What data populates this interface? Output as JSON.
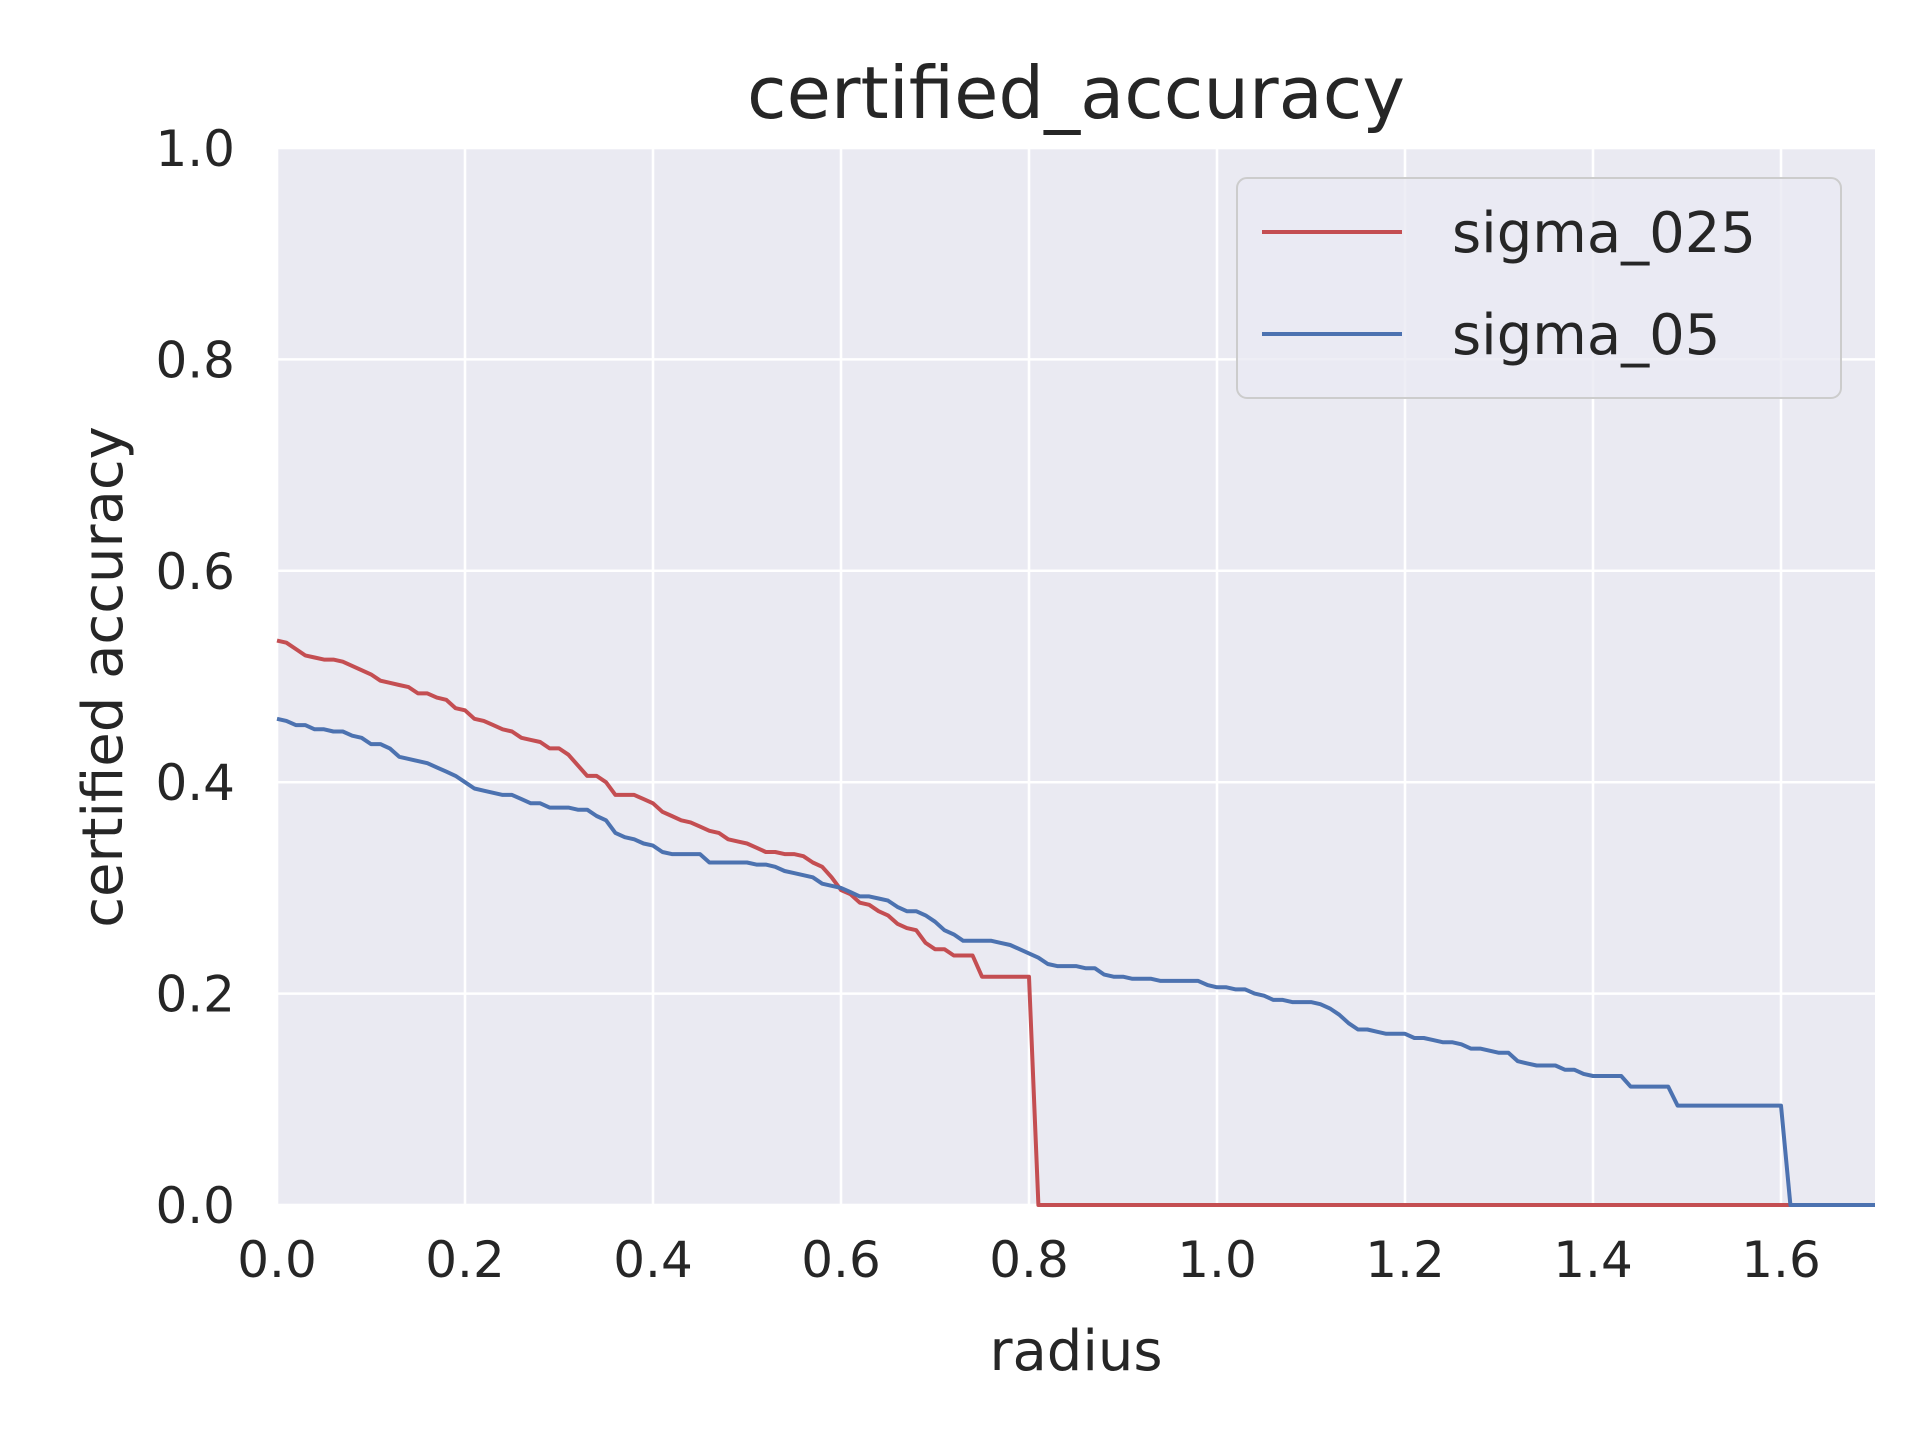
{
  "chart_data": {
    "type": "line",
    "title": "certified_accuracy",
    "xlabel": "radius",
    "ylabel": "certified accuracy",
    "xlim": [
      0.0,
      1.7
    ],
    "ylim": [
      0.0,
      1.0
    ],
    "xticks": [
      "0.0",
      "0.2",
      "0.4",
      "0.6",
      "0.8",
      "1.0",
      "1.2",
      "1.4",
      "1.6"
    ],
    "yticks": [
      "0.0",
      "0.2",
      "0.4",
      "0.6",
      "0.8",
      "1.0"
    ],
    "grid": true,
    "legend_position": "top-right",
    "background_color": "#eaeaf2",
    "series": [
      {
        "name": "sigma_025",
        "color": "#c44e52",
        "points": [
          [
            0.0,
            0.534
          ],
          [
            0.01,
            0.532
          ],
          [
            0.02,
            0.526
          ],
          [
            0.03,
            0.52
          ],
          [
            0.04,
            0.518
          ],
          [
            0.05,
            0.516
          ],
          [
            0.06,
            0.516
          ],
          [
            0.07,
            0.514
          ],
          [
            0.08,
            0.51
          ],
          [
            0.09,
            0.506
          ],
          [
            0.1,
            0.502
          ],
          [
            0.11,
            0.496
          ],
          [
            0.12,
            0.494
          ],
          [
            0.13,
            0.492
          ],
          [
            0.14,
            0.49
          ],
          [
            0.15,
            0.484
          ],
          [
            0.16,
            0.484
          ],
          [
            0.17,
            0.48
          ],
          [
            0.18,
            0.478
          ],
          [
            0.19,
            0.47
          ],
          [
            0.2,
            0.468
          ],
          [
            0.21,
            0.46
          ],
          [
            0.22,
            0.458
          ],
          [
            0.23,
            0.454
          ],
          [
            0.24,
            0.45
          ],
          [
            0.25,
            0.448
          ],
          [
            0.26,
            0.442
          ],
          [
            0.27,
            0.44
          ],
          [
            0.28,
            0.438
          ],
          [
            0.29,
            0.432
          ],
          [
            0.3,
            0.432
          ],
          [
            0.31,
            0.426
          ],
          [
            0.32,
            0.416
          ],
          [
            0.33,
            0.406
          ],
          [
            0.34,
            0.406
          ],
          [
            0.35,
            0.4
          ],
          [
            0.36,
            0.388
          ],
          [
            0.37,
            0.388
          ],
          [
            0.38,
            0.388
          ],
          [
            0.39,
            0.384
          ],
          [
            0.4,
            0.38
          ],
          [
            0.41,
            0.372
          ],
          [
            0.42,
            0.368
          ],
          [
            0.43,
            0.364
          ],
          [
            0.44,
            0.362
          ],
          [
            0.45,
            0.358
          ],
          [
            0.46,
            0.354
          ],
          [
            0.47,
            0.352
          ],
          [
            0.48,
            0.346
          ],
          [
            0.49,
            0.344
          ],
          [
            0.5,
            0.342
          ],
          [
            0.51,
            0.338
          ],
          [
            0.52,
            0.334
          ],
          [
            0.53,
            0.334
          ],
          [
            0.54,
            0.332
          ],
          [
            0.55,
            0.332
          ],
          [
            0.56,
            0.33
          ],
          [
            0.57,
            0.324
          ],
          [
            0.58,
            0.32
          ],
          [
            0.59,
            0.31
          ],
          [
            0.6,
            0.298
          ],
          [
            0.61,
            0.294
          ],
          [
            0.62,
            0.286
          ],
          [
            0.63,
            0.284
          ],
          [
            0.64,
            0.278
          ],
          [
            0.65,
            0.274
          ],
          [
            0.66,
            0.266
          ],
          [
            0.67,
            0.262
          ],
          [
            0.68,
            0.26
          ],
          [
            0.69,
            0.248
          ],
          [
            0.7,
            0.242
          ],
          [
            0.71,
            0.242
          ],
          [
            0.72,
            0.236
          ],
          [
            0.73,
            0.236
          ],
          [
            0.74,
            0.236
          ],
          [
            0.75,
            0.216
          ],
          [
            0.76,
            0.216
          ],
          [
            0.77,
            0.216
          ],
          [
            0.78,
            0.216
          ],
          [
            0.79,
            0.216
          ],
          [
            0.8,
            0.216
          ],
          [
            0.81,
            0.0
          ],
          [
            1.7,
            0.0
          ]
        ]
      },
      {
        "name": "sigma_05",
        "color": "#4c72b0",
        "points": [
          [
            0.0,
            0.46
          ],
          [
            0.01,
            0.458
          ],
          [
            0.02,
            0.454
          ],
          [
            0.03,
            0.454
          ],
          [
            0.04,
            0.45
          ],
          [
            0.05,
            0.45
          ],
          [
            0.06,
            0.448
          ],
          [
            0.07,
            0.448
          ],
          [
            0.08,
            0.444
          ],
          [
            0.09,
            0.442
          ],
          [
            0.1,
            0.436
          ],
          [
            0.11,
            0.436
          ],
          [
            0.12,
            0.432
          ],
          [
            0.13,
            0.424
          ],
          [
            0.14,
            0.422
          ],
          [
            0.15,
            0.42
          ],
          [
            0.16,
            0.418
          ],
          [
            0.17,
            0.414
          ],
          [
            0.18,
            0.41
          ],
          [
            0.19,
            0.406
          ],
          [
            0.2,
            0.4
          ],
          [
            0.21,
            0.394
          ],
          [
            0.22,
            0.392
          ],
          [
            0.23,
            0.39
          ],
          [
            0.24,
            0.388
          ],
          [
            0.25,
            0.388
          ],
          [
            0.26,
            0.384
          ],
          [
            0.27,
            0.38
          ],
          [
            0.28,
            0.38
          ],
          [
            0.29,
            0.376
          ],
          [
            0.3,
            0.376
          ],
          [
            0.31,
            0.376
          ],
          [
            0.32,
            0.374
          ],
          [
            0.33,
            0.374
          ],
          [
            0.34,
            0.368
          ],
          [
            0.35,
            0.364
          ],
          [
            0.36,
            0.352
          ],
          [
            0.37,
            0.348
          ],
          [
            0.38,
            0.346
          ],
          [
            0.39,
            0.342
          ],
          [
            0.4,
            0.34
          ],
          [
            0.41,
            0.334
          ],
          [
            0.42,
            0.332
          ],
          [
            0.43,
            0.332
          ],
          [
            0.44,
            0.332
          ],
          [
            0.45,
            0.332
          ],
          [
            0.46,
            0.324
          ],
          [
            0.47,
            0.324
          ],
          [
            0.48,
            0.324
          ],
          [
            0.49,
            0.324
          ],
          [
            0.5,
            0.324
          ],
          [
            0.51,
            0.322
          ],
          [
            0.52,
            0.322
          ],
          [
            0.53,
            0.32
          ],
          [
            0.54,
            0.316
          ],
          [
            0.55,
            0.314
          ],
          [
            0.56,
            0.312
          ],
          [
            0.57,
            0.31
          ],
          [
            0.58,
            0.304
          ],
          [
            0.59,
            0.302
          ],
          [
            0.6,
            0.3
          ],
          [
            0.61,
            0.296
          ],
          [
            0.62,
            0.292
          ],
          [
            0.63,
            0.292
          ],
          [
            0.64,
            0.29
          ],
          [
            0.65,
            0.288
          ],
          [
            0.66,
            0.282
          ],
          [
            0.67,
            0.278
          ],
          [
            0.68,
            0.278
          ],
          [
            0.69,
            0.274
          ],
          [
            0.7,
            0.268
          ],
          [
            0.71,
            0.26
          ],
          [
            0.72,
            0.256
          ],
          [
            0.73,
            0.25
          ],
          [
            0.74,
            0.25
          ],
          [
            0.75,
            0.25
          ],
          [
            0.76,
            0.25
          ],
          [
            0.77,
            0.248
          ],
          [
            0.78,
            0.246
          ],
          [
            0.79,
            0.242
          ],
          [
            0.8,
            0.238
          ],
          [
            0.81,
            0.234
          ],
          [
            0.82,
            0.228
          ],
          [
            0.83,
            0.226
          ],
          [
            0.84,
            0.226
          ],
          [
            0.85,
            0.226
          ],
          [
            0.86,
            0.224
          ],
          [
            0.87,
            0.224
          ],
          [
            0.88,
            0.218
          ],
          [
            0.89,
            0.216
          ],
          [
            0.9,
            0.216
          ],
          [
            0.91,
            0.214
          ],
          [
            0.92,
            0.214
          ],
          [
            0.93,
            0.214
          ],
          [
            0.94,
            0.212
          ],
          [
            0.95,
            0.212
          ],
          [
            0.96,
            0.212
          ],
          [
            0.97,
            0.212
          ],
          [
            0.98,
            0.212
          ],
          [
            0.99,
            0.208
          ],
          [
            1.0,
            0.206
          ],
          [
            1.01,
            0.206
          ],
          [
            1.02,
            0.204
          ],
          [
            1.03,
            0.204
          ],
          [
            1.04,
            0.2
          ],
          [
            1.05,
            0.198
          ],
          [
            1.06,
            0.194
          ],
          [
            1.07,
            0.194
          ],
          [
            1.08,
            0.192
          ],
          [
            1.09,
            0.192
          ],
          [
            1.1,
            0.192
          ],
          [
            1.11,
            0.19
          ],
          [
            1.12,
            0.186
          ],
          [
            1.13,
            0.18
          ],
          [
            1.14,
            0.172
          ],
          [
            1.15,
            0.166
          ],
          [
            1.16,
            0.166
          ],
          [
            1.17,
            0.164
          ],
          [
            1.18,
            0.162
          ],
          [
            1.19,
            0.162
          ],
          [
            1.2,
            0.162
          ],
          [
            1.21,
            0.158
          ],
          [
            1.22,
            0.158
          ],
          [
            1.23,
            0.156
          ],
          [
            1.24,
            0.154
          ],
          [
            1.25,
            0.154
          ],
          [
            1.26,
            0.152
          ],
          [
            1.27,
            0.148
          ],
          [
            1.28,
            0.148
          ],
          [
            1.29,
            0.146
          ],
          [
            1.3,
            0.144
          ],
          [
            1.31,
            0.144
          ],
          [
            1.32,
            0.136
          ],
          [
            1.33,
            0.134
          ],
          [
            1.34,
            0.132
          ],
          [
            1.35,
            0.132
          ],
          [
            1.36,
            0.132
          ],
          [
            1.37,
            0.128
          ],
          [
            1.38,
            0.128
          ],
          [
            1.39,
            0.124
          ],
          [
            1.4,
            0.122
          ],
          [
            1.41,
            0.122
          ],
          [
            1.42,
            0.122
          ],
          [
            1.43,
            0.122
          ],
          [
            1.44,
            0.112
          ],
          [
            1.45,
            0.112
          ],
          [
            1.46,
            0.112
          ],
          [
            1.47,
            0.112
          ],
          [
            1.48,
            0.112
          ],
          [
            1.49,
            0.094
          ],
          [
            1.5,
            0.094
          ],
          [
            1.51,
            0.094
          ],
          [
            1.52,
            0.094
          ],
          [
            1.53,
            0.094
          ],
          [
            1.54,
            0.094
          ],
          [
            1.55,
            0.094
          ],
          [
            1.56,
            0.094
          ],
          [
            1.57,
            0.094
          ],
          [
            1.58,
            0.094
          ],
          [
            1.59,
            0.094
          ],
          [
            1.6,
            0.094
          ],
          [
            1.61,
            0.0
          ],
          [
            1.7,
            0.0
          ]
        ]
      }
    ]
  }
}
